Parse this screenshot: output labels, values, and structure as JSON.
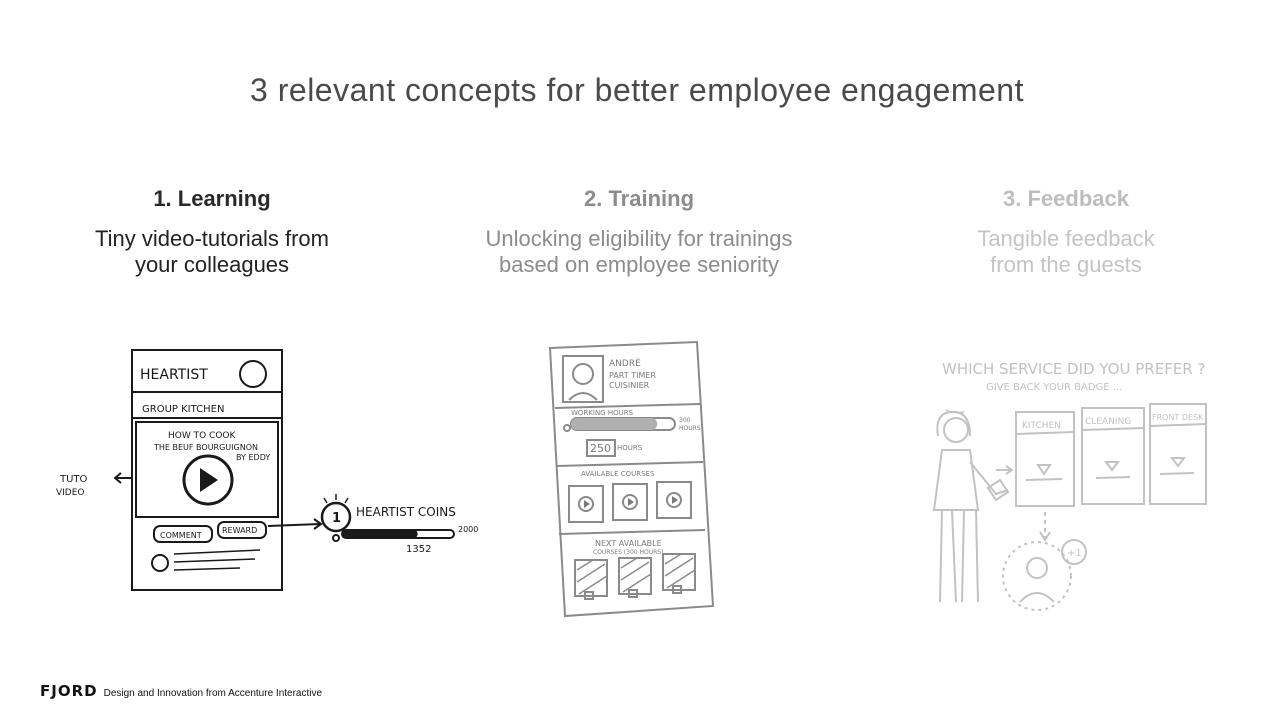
{
  "title": "3 relevant concepts for better employee engagement",
  "concepts": [
    {
      "heading": "1. Learning",
      "description": "Tiny video-tutorials from\nyour colleagues"
    },
    {
      "heading": "2. Training",
      "description": "Unlocking eligibility for trainings\nbased on employee seniority"
    },
    {
      "heading": "3. Feedback",
      "description": "Tangible feedback\nfrom the guests"
    }
  ],
  "sketch1": {
    "app_name": "HEARTIST",
    "group": "GROUP KITCHEN",
    "video_title_1": "HOW TO COOK",
    "video_title_2": "THE BEUF BOURGUIGNON",
    "video_author": "BY EDDY",
    "comment_label": "COMMENT",
    "reward_label": "REWARD",
    "tuto_label_1": "TUTO",
    "tuto_label_2": "VIDEO",
    "coins_label": "HEARTIST COINS",
    "coins_badge": "1",
    "coins_value": "1352",
    "coins_max": "2000",
    "coins_progress": 0.676
  },
  "sketch2": {
    "name": "ANDRÉ",
    "role_1": "PART TIMER",
    "role_2": "CUISINIER",
    "working_hours_label": "WORKING HOURS",
    "hours_max_1": "300",
    "hours_max_2": "HOURS",
    "hours_value": "250",
    "hours_unit": "HOURS",
    "hours_progress": 0.83,
    "available_label": "AVAILABLE COURSES",
    "next_label_1": "NEXT AVAILABLE",
    "next_label_2": "COURSES (300 HOURS)"
  },
  "sketch3": {
    "question": "WHICH SERVICE DID YOU PREFER ?",
    "subtitle": "GIVE BACK YOUR BADGE ...",
    "options": [
      "KITCHEN",
      "CLEANING",
      "FRONT DESK"
    ],
    "plus_badge": "+1"
  },
  "footer": {
    "logo": "FJORD",
    "tagline": "Design and Innovation from Accenture Interactive"
  }
}
